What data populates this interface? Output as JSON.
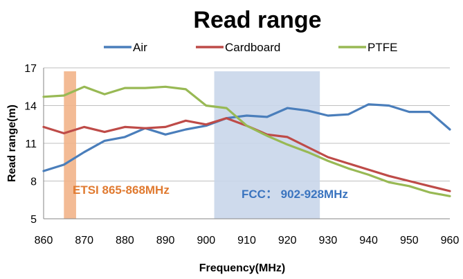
{
  "chart_data": {
    "type": "line",
    "title": "Read range",
    "xlabel": "Frequency(MHz)",
    "ylabel": "Read range(m)",
    "xlim": [
      860,
      960
    ],
    "ylim": [
      5,
      17
    ],
    "xticks": [
      "860",
      "870",
      "880",
      "890",
      "900",
      "910",
      "920",
      "930",
      "940",
      "950",
      "960"
    ],
    "yticks": [
      "5",
      "8",
      "11",
      "14",
      "17"
    ],
    "x": [
      860,
      865,
      870,
      875,
      880,
      885,
      890,
      895,
      900,
      905,
      910,
      915,
      920,
      925,
      930,
      935,
      940,
      945,
      950,
      955,
      960
    ],
    "series": [
      {
        "name": "Air",
        "color": "#4a7ebb",
        "values": [
          8.8,
          9.3,
          10.3,
          11.2,
          11.5,
          12.2,
          11.7,
          12.1,
          12.4,
          13.0,
          13.2,
          13.1,
          13.8,
          13.6,
          13.2,
          13.3,
          14.1,
          14.0,
          13.5,
          13.5,
          12.1
        ]
      },
      {
        "name": "Cardboard",
        "color": "#be4b48",
        "values": [
          12.3,
          11.8,
          12.3,
          11.9,
          12.3,
          12.2,
          12.3,
          12.8,
          12.5,
          13.0,
          12.4,
          11.7,
          11.5,
          10.7,
          9.9,
          9.4,
          8.9,
          8.4,
          8.0,
          7.6,
          7.2
        ]
      },
      {
        "name": "PTFE",
        "color": "#98b954",
        "values": [
          14.7,
          14.8,
          15.5,
          14.9,
          15.4,
          15.4,
          15.5,
          15.3,
          14.0,
          13.8,
          12.4,
          11.6,
          10.9,
          10.3,
          9.6,
          9.0,
          8.5,
          7.9,
          7.6,
          7.1,
          6.8
        ]
      }
    ],
    "bands": [
      {
        "label": "ETSI 865-868MHz",
        "from": 865,
        "to": 868,
        "color": "#f2b48a",
        "text_color": "#e07a30"
      },
      {
        "label": "FCC： 902-928MHz",
        "from": 902,
        "to": 928,
        "color": "#c9d6ea",
        "text_color": "#3a74bf"
      }
    ],
    "legend_position": "top",
    "grid": "horizontal"
  }
}
